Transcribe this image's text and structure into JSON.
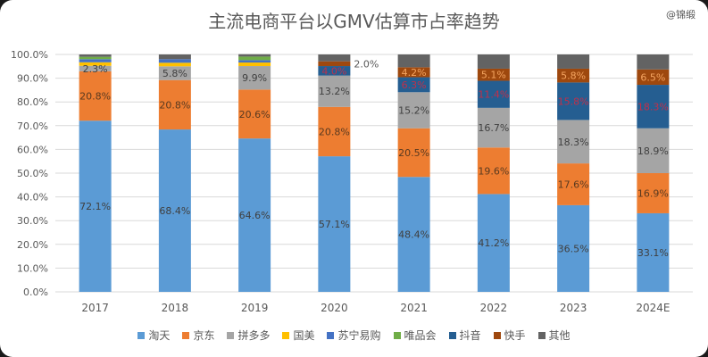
{
  "watermark": "@锦缎",
  "chart_data": {
    "type": "bar",
    "stacked": true,
    "title": "主流电商平台以GMV估算市占率趋势",
    "categories": [
      "2017",
      "2018",
      "2019",
      "2020",
      "2021",
      "2022",
      "2023",
      "2024E"
    ],
    "ylim": [
      0,
      100
    ],
    "yticks": [
      "0.0%",
      "10.0%",
      "20.0%",
      "30.0%",
      "40.0%",
      "50.0%",
      "60.0%",
      "70.0%",
      "80.0%",
      "90.0%",
      "100.0%"
    ],
    "grid": true,
    "legend_position": "bottom",
    "series": [
      {
        "name": "淘天",
        "color": "#5b9bd5",
        "label_color": "#404040",
        "values": [
          72.1,
          68.4,
          64.6,
          57.1,
          48.4,
          41.2,
          36.5,
          33.1
        ],
        "labels": [
          "72.1%",
          "68.4%",
          "64.6%",
          "57.1%",
          "48.4%",
          "41.2%",
          "36.5%",
          "33.1%"
        ]
      },
      {
        "name": "京东",
        "color": "#ed7d31",
        "label_color": "#5a3a20",
        "values": [
          20.8,
          20.8,
          20.6,
          20.8,
          20.5,
          19.6,
          17.6,
          16.9
        ],
        "labels": [
          "20.8%",
          "20.8%",
          "20.6%",
          "20.8%",
          "20.5%",
          "19.6%",
          "17.6%",
          "16.9%"
        ]
      },
      {
        "name": "拼多多",
        "color": "#a5a5a5",
        "label_color": "#404040",
        "values": [
          2.3,
          5.8,
          9.9,
          13.2,
          15.2,
          16.7,
          18.3,
          18.9
        ],
        "labels": [
          "2.3%",
          "5.8%",
          "9.9%",
          "13.2%",
          "15.2%",
          "16.7%",
          "18.3%",
          "18.9%"
        ]
      },
      {
        "name": "国美",
        "color": "#ffc000",
        "label_color": "#404040",
        "values": [
          1.5,
          1.5,
          1.5,
          0,
          0,
          0,
          0,
          0
        ],
        "labels": [
          "",
          "",
          "",
          "",
          "",
          "",
          "",
          ""
        ]
      },
      {
        "name": "苏宁易购",
        "color": "#4472c4",
        "label_color": "#404040",
        "values": [
          1.3,
          1.5,
          1.0,
          0,
          0,
          0,
          0,
          0
        ],
        "labels": [
          "",
          "",
          "",
          "",
          "",
          "",
          "",
          ""
        ]
      },
      {
        "name": "唯品会",
        "color": "#70ad47",
        "label_color": "#404040",
        "values": [
          1.0,
          0,
          1.5,
          0,
          0,
          0,
          0,
          0
        ],
        "labels": [
          "",
          "",
          "",
          "",
          "",
          "",
          "",
          ""
        ]
      },
      {
        "name": "抖音",
        "color": "#255e91",
        "label_color": "#c0304a",
        "values": [
          0,
          0,
          0,
          4.0,
          6.3,
          11.4,
          15.8,
          18.3
        ],
        "labels": [
          "",
          "",
          "",
          "4.0%",
          "6.3%",
          "11.4%",
          "15.8%",
          "18.3%"
        ]
      },
      {
        "name": "快手",
        "color": "#9e480e",
        "label_color": "#f4a460",
        "values": [
          0,
          0,
          0,
          2.0,
          4.2,
          5.1,
          5.8,
          6.5
        ],
        "labels": [
          "",
          "",
          "",
          "2.0%",
          "4.2%",
          "5.1%",
          "5.8%",
          "6.5%"
        ]
      },
      {
        "name": "其他",
        "color": "#636363",
        "label_color": "#404040",
        "values": [
          1.0,
          2.0,
          1.0,
          2.9,
          5.4,
          6.0,
          6.0,
          6.3
        ],
        "labels": [
          "",
          "",
          "",
          "",
          "",
          "",
          "",
          ""
        ]
      }
    ]
  }
}
